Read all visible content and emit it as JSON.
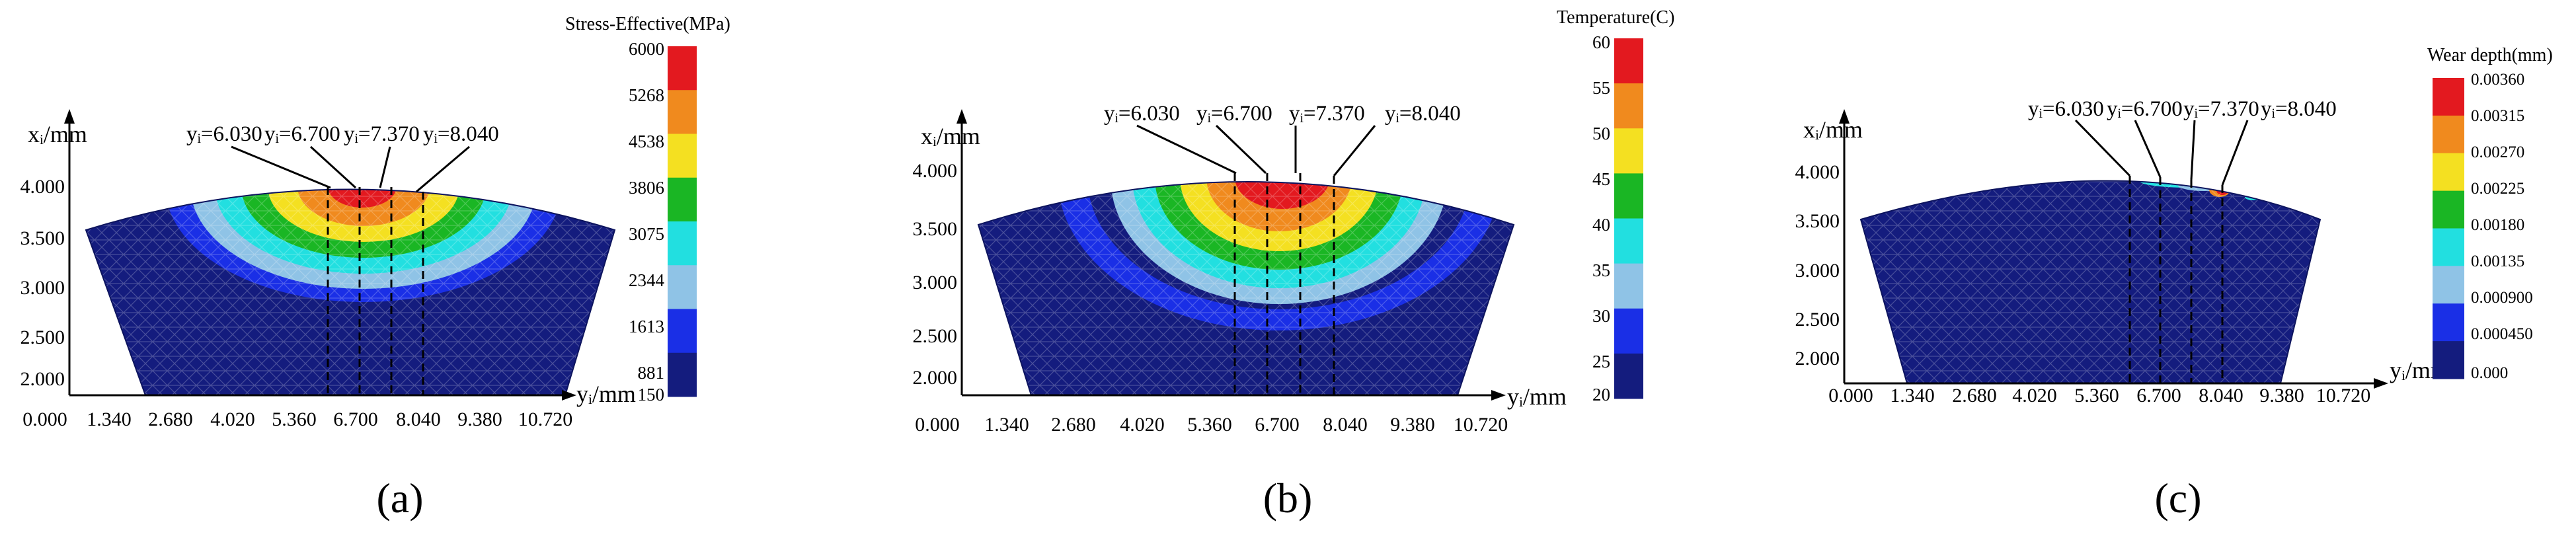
{
  "panels": [
    {
      "id": "a",
      "caption": "(a)",
      "x_axis_label": "yᵢ/mm",
      "y_axis_label": "xᵢ/mm",
      "x_ticks": [
        "0.000",
        "1.340",
        "2.680",
        "4.020",
        "5.360",
        "6.700",
        "8.040",
        "9.380",
        "10.720"
      ],
      "y_ticks": [
        "4.000",
        "3.500",
        "3.000",
        "2.500",
        "2.000"
      ],
      "annotations": [
        "yᵢ=6.030",
        "yᵢ=6.700",
        "yᵢ=7.370",
        "yᵢ=8.040"
      ],
      "colorbar": {
        "title": "Stress-Effective(MPa)",
        "labels": [
          "6000",
          "5268",
          "4538",
          "3806",
          "3075",
          "2344",
          "1613",
          "881",
          "150"
        ],
        "colors": [
          "#e3191f",
          "#f08a1e",
          "#f4e021",
          "#1ab624",
          "#22dfe0",
          "#8fc3e6",
          "#1a2fe6",
          "#141c7e"
        ]
      }
    },
    {
      "id": "b",
      "caption": "(b)",
      "x_axis_label": "yᵢ/mm",
      "y_axis_label": "xᵢ/mm",
      "x_ticks": [
        "0.000",
        "1.340",
        "2.680",
        "4.020",
        "5.360",
        "6.700",
        "8.040",
        "9.380",
        "10.720"
      ],
      "y_ticks": [
        "4.000",
        "3.500",
        "3.000",
        "2.500",
        "2.000"
      ],
      "annotations": [
        "yᵢ=6.030",
        "yᵢ=6.700",
        "yᵢ=7.370",
        "yᵢ=8.040"
      ],
      "colorbar": {
        "title": "Temperature(C)",
        "labels": [
          "60",
          "55",
          "50",
          "45",
          "40",
          "35",
          "30",
          "25",
          "20"
        ],
        "colors": [
          "#e3191f",
          "#f08a1e",
          "#f4e021",
          "#1ab624",
          "#22dfe0",
          "#8fc3e6",
          "#1a2fe6",
          "#141c7e"
        ]
      }
    },
    {
      "id": "c",
      "caption": "(c)",
      "x_axis_label": "yᵢ/mm",
      "y_axis_label": "xᵢ/mm",
      "x_ticks": [
        "0.000",
        "1.340",
        "2.680",
        "4.020",
        "5.360",
        "6.700",
        "8.040",
        "9.380",
        "10.720"
      ],
      "y_ticks": [
        "4.000",
        "3.500",
        "3.000",
        "2.500",
        "2.000"
      ],
      "annotations": [
        "yᵢ=6.030",
        "yᵢ=6.700",
        "yᵢ=7.370",
        "yᵢ=8.040"
      ],
      "colorbar": {
        "title": "Wear depth(mm)",
        "labels": [
          "0.00360",
          "0.00315",
          "0.00270",
          "0.00225",
          "0.00180",
          "0.00135",
          "0.000900",
          "0.000450",
          "0.000"
        ],
        "colors": [
          "#e3191f",
          "#f08a1e",
          "#f4e021",
          "#1ab624",
          "#22dfe0",
          "#8fc3e6",
          "#1a2fe6",
          "#141c7e"
        ]
      }
    }
  ]
}
